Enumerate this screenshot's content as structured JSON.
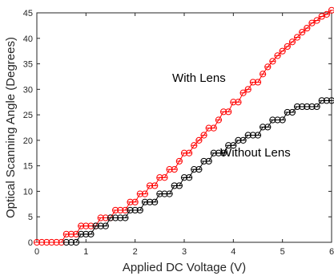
{
  "chart_data": {
    "type": "scatter",
    "title": "",
    "xlabel": "Applied DC Voltage (V)",
    "ylabel": "Optical Scanning Angle (Degrees)",
    "xlim": [
      0,
      6
    ],
    "ylim": [
      0,
      45
    ],
    "xticks": [
      "0",
      "1",
      "2",
      "3",
      "4",
      "5",
      "6"
    ],
    "yticks": [
      "0",
      "5",
      "10",
      "15",
      "20",
      "25",
      "30",
      "35",
      "40",
      "45"
    ],
    "grid": false,
    "series": [
      {
        "name": "With Lens",
        "color": "#ff0000",
        "marker": "circle-cross",
        "x": [
          0,
          0.1,
          0.2,
          0.3,
          0.4,
          0.5,
          0.6,
          0.7,
          0.8,
          0.9,
          1.0,
          1.1,
          1.2,
          1.3,
          1.4,
          1.5,
          1.6,
          1.7,
          1.8,
          1.9,
          2.0,
          2.1,
          2.2,
          2.3,
          2.4,
          2.5,
          2.6,
          2.7,
          2.8,
          2.9,
          3.0,
          3.1,
          3.2,
          3.3,
          3.4,
          3.5,
          3.6,
          3.7,
          3.8,
          3.9,
          4.0,
          4.1,
          4.2,
          4.3,
          4.4,
          4.5,
          4.6,
          4.7,
          4.8,
          4.9,
          5.0,
          5.1,
          5.2,
          5.3,
          5.4,
          5.5,
          5.6,
          5.7,
          5.8,
          5.9,
          6.0
        ],
        "y": [
          0,
          0,
          0,
          0,
          0,
          0,
          1.6,
          1.6,
          1.6,
          3.2,
          3.2,
          3.2,
          3.2,
          4.8,
          4.8,
          4.8,
          6.3,
          6.3,
          6.3,
          7.9,
          7.9,
          9.5,
          9.5,
          11.1,
          11.1,
          12.7,
          12.7,
          14.3,
          14.3,
          15.9,
          17.5,
          17.5,
          19.0,
          20.0,
          21.0,
          22.4,
          22.4,
          24.0,
          25.6,
          25.6,
          27.5,
          27.5,
          29.3,
          30.0,
          31.4,
          31.4,
          33.0,
          34.4,
          35.5,
          36.6,
          37.5,
          38.4,
          39.3,
          40.2,
          41.2,
          42.0,
          43.0,
          43.5,
          44.3,
          44.7,
          45.5
        ]
      },
      {
        "name": "Without Lens",
        "color": "#000000",
        "marker": "circle-cross",
        "x": [
          0.6,
          0.7,
          0.8,
          0.9,
          1.0,
          1.1,
          1.2,
          1.3,
          1.4,
          1.5,
          1.6,
          1.7,
          1.8,
          1.9,
          2.0,
          2.1,
          2.2,
          2.3,
          2.4,
          2.5,
          2.6,
          2.7,
          2.8,
          2.9,
          3.0,
          3.1,
          3.2,
          3.3,
          3.4,
          3.5,
          3.6,
          3.7,
          3.8,
          3.9,
          4.0,
          4.1,
          4.2,
          4.3,
          4.4,
          4.5,
          4.6,
          4.7,
          4.8,
          4.9,
          5.0,
          5.1,
          5.2,
          5.3,
          5.4,
          5.5,
          5.6,
          5.7,
          5.8,
          5.9,
          6.0
        ],
        "y": [
          0,
          0,
          0,
          1.6,
          1.6,
          1.6,
          3.2,
          3.2,
          3.2,
          4.8,
          4.8,
          4.8,
          4.8,
          6.3,
          6.3,
          6.3,
          7.9,
          7.9,
          7.9,
          9.5,
          9.5,
          9.5,
          11.1,
          11.1,
          12.7,
          12.7,
          14.3,
          14.3,
          15.9,
          15.9,
          17.5,
          17.5,
          17.5,
          19.0,
          19.0,
          20.0,
          20.0,
          21.0,
          21.0,
          21.0,
          22.6,
          22.6,
          24.0,
          24.0,
          24.0,
          25.5,
          25.5,
          26.6,
          26.6,
          26.6,
          26.6,
          26.6,
          27.8,
          27.8,
          27.8
        ]
      }
    ],
    "annotations": [
      {
        "text": "With Lens",
        "x": 3.3,
        "y": 31.5
      },
      {
        "text": "Without Lens",
        "x": 4.45,
        "y": 16.8
      }
    ]
  }
}
